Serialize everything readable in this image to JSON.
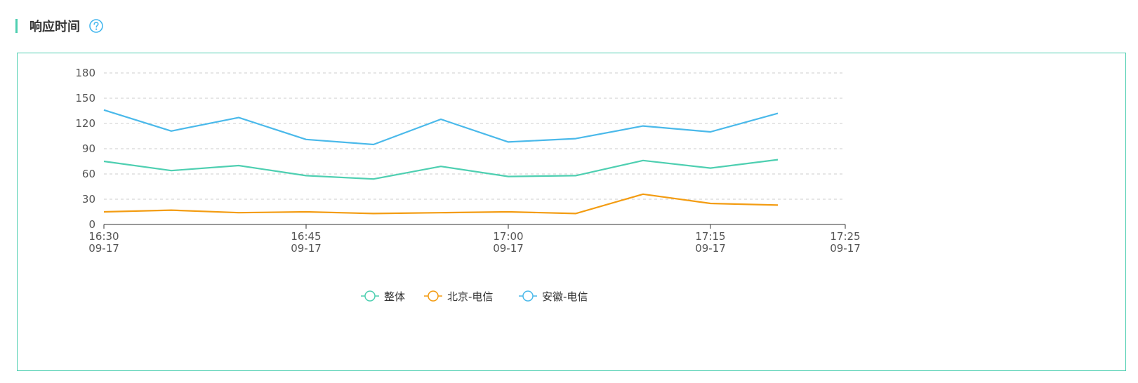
{
  "header": {
    "title": "响应时间",
    "help_icon": "question-circle-icon"
  },
  "colors": {
    "accent": "#4ecfb1",
    "help": "#45b7ee"
  },
  "chart_data": {
    "type": "line",
    "x": [
      "16:30",
      "16:35",
      "16:40",
      "16:45",
      "16:50",
      "16:55",
      "17:00",
      "17:05",
      "17:10",
      "17:15",
      "17:20"
    ],
    "x_ticks": [
      {
        "time": "16:30",
        "date": "09-17"
      },
      {
        "time": "16:45",
        "date": "09-17"
      },
      {
        "time": "17:00",
        "date": "09-17"
      },
      {
        "time": "17:15",
        "date": "09-17"
      },
      {
        "time": "17:25",
        "date": "09-17"
      }
    ],
    "xlim": [
      "16:30",
      "17:25"
    ],
    "y_ticks": [
      0,
      30,
      60,
      90,
      120,
      150,
      180
    ],
    "ylim": [
      0,
      180
    ],
    "grid": true,
    "legend_position": "bottom-center",
    "series": [
      {
        "name": "整体",
        "color": "#4ecfb1",
        "values": [
          75,
          64,
          70,
          58,
          54,
          69,
          57,
          58,
          76,
          67,
          77
        ]
      },
      {
        "name": "北京-电信",
        "color": "#f39c12",
        "values": [
          15,
          17,
          14,
          15,
          13,
          14,
          15,
          13,
          36,
          25,
          23
        ]
      },
      {
        "name": "安徽-电信",
        "color": "#4ab9ea",
        "values": [
          136,
          111,
          127,
          101,
          95,
          125,
          98,
          102,
          117,
          110,
          132
        ]
      }
    ]
  }
}
